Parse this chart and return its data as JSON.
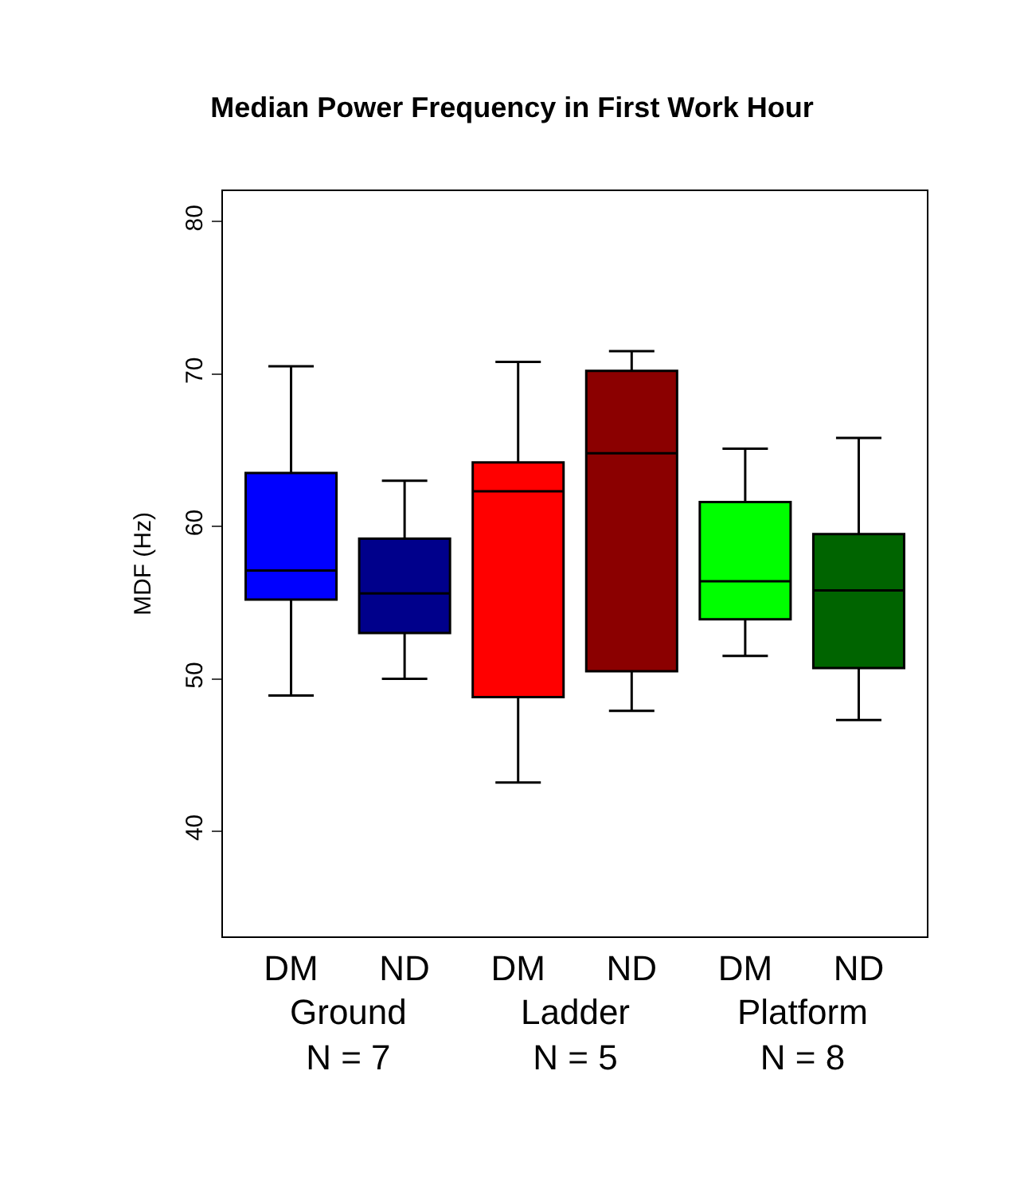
{
  "chart_data": {
    "type": "box",
    "title": "Median Power Frequency in First Work Hour",
    "ylabel": "MDF (Hz)",
    "categories": [
      "DM",
      "ND",
      "DM",
      "ND",
      "DM",
      "ND"
    ],
    "colors": [
      "#0000ff",
      "#00008b",
      "#ff0000",
      "#8b0000",
      "#00ff00",
      "#006400"
    ],
    "boxes": [
      {
        "low": 48.9,
        "q1": 55.2,
        "median": 57.1,
        "q3": 63.5,
        "high": 70.5
      },
      {
        "low": 50.0,
        "q1": 53.0,
        "median": 55.6,
        "q3": 59.2,
        "high": 63.0
      },
      {
        "low": 43.2,
        "q1": 48.8,
        "median": 62.3,
        "q3": 64.2,
        "high": 70.8
      },
      {
        "low": 47.9,
        "q1": 50.5,
        "median": 64.8,
        "q3": 70.2,
        "high": 71.5
      },
      {
        "low": 51.5,
        "q1": 53.9,
        "median": 56.4,
        "q3": 61.6,
        "high": 65.1
      },
      {
        "low": 47.3,
        "q1": 50.7,
        "median": 55.8,
        "q3": 59.5,
        "high": 65.8
      }
    ],
    "annotations": [
      "Ground\nN = 7",
      "Ladder\nN = 5",
      "Platform\nN = 8"
    ],
    "ylim": [
      33.1,
      82
    ],
    "yticks": [
      40,
      50,
      60,
      70,
      80
    ]
  }
}
